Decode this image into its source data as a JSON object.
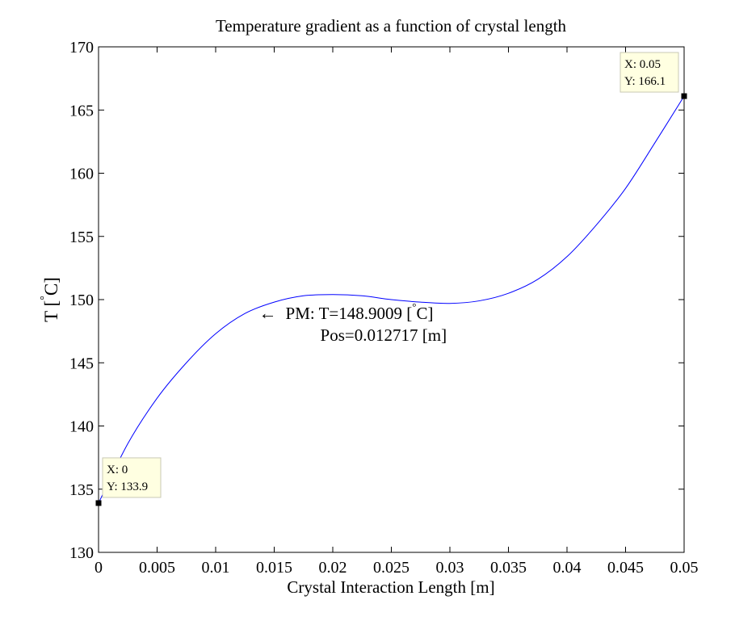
{
  "chart_data": {
    "type": "line",
    "title": "Temperature gradient as a function of crystal length",
    "xlabel": "Crystal Interaction Length [m]",
    "ylabel": {
      "base": "T [",
      "degree": "°",
      "unit": "C]"
    },
    "xlim": [
      0,
      0.05
    ],
    "ylim": [
      130,
      170
    ],
    "xticks": [
      0,
      0.005,
      0.01,
      0.015,
      0.02,
      0.025,
      0.03,
      0.035,
      0.04,
      0.045,
      0.05
    ],
    "xtick_labels": [
      "0",
      "0.005",
      "0.01",
      "0.015",
      "0.02",
      "0.025",
      "0.03",
      "0.035",
      "0.04",
      "0.045",
      "0.05"
    ],
    "yticks": [
      130,
      135,
      140,
      145,
      150,
      155,
      160,
      165,
      170
    ],
    "ytick_labels": [
      "130",
      "135",
      "140",
      "145",
      "150",
      "155",
      "160",
      "165",
      "170"
    ],
    "grid": false,
    "series": [
      {
        "color": "#0000ff",
        "x": [
          0,
          0.0025,
          0.005,
          0.0075,
          0.01,
          0.0125,
          0.015,
          0.0175,
          0.02,
          0.0225,
          0.025,
          0.0275,
          0.03,
          0.0325,
          0.035,
          0.0375,
          0.04,
          0.0425,
          0.045,
          0.0475,
          0.05
        ],
        "y": [
          133.9,
          138.6,
          142.2,
          145.0,
          147.3,
          148.9,
          149.8,
          150.3,
          150.4,
          150.3,
          150.0,
          149.8,
          149.7,
          149.9,
          150.5,
          151.6,
          153.4,
          155.9,
          158.8,
          162.4,
          166.1
        ]
      }
    ],
    "datatips": [
      {
        "x": 0,
        "y": 133.9,
        "x_label": "X: 0",
        "y_label": "Y: 133.9"
      },
      {
        "x": 0.05,
        "y": 166.1,
        "x_label": "X: 0.05",
        "y_label": "Y: 166.1"
      }
    ],
    "annotation": {
      "arrow": "←",
      "x": 0.0139,
      "y": 149.5,
      "line1_text": "PM: T=148.9009 [",
      "line1_degree": "°",
      "line1_end": "C]",
      "line2_text": "Pos=0.012717 [m]"
    }
  }
}
